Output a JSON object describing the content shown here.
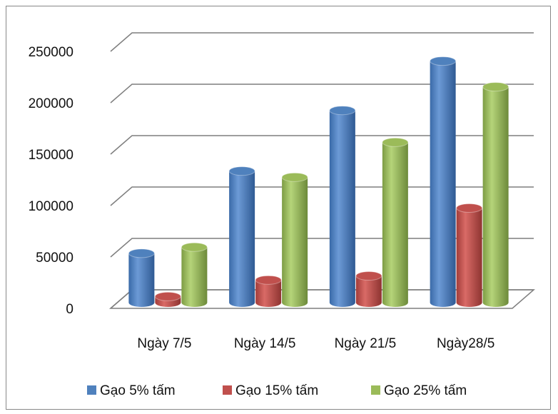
{
  "chart_data": {
    "type": "bar",
    "style": "3d-cylinder",
    "categories": [
      "Ngày 7/5",
      "Ngày 14/5",
      "Ngày 21/5",
      "Ngày28/5"
    ],
    "series": [
      {
        "name": "Gạo 5% tấm",
        "color": "#4f81bd",
        "values": [
          48000,
          128000,
          187000,
          235000
        ]
      },
      {
        "name": "Gạo 15% tấm",
        "color": "#c0504d",
        "values": [
          6000,
          22000,
          26000,
          92000
        ]
      },
      {
        "name": "Gạo 25% tấm",
        "color": "#9bbb59",
        "values": [
          54000,
          122000,
          156000,
          210000
        ]
      }
    ],
    "ylim": [
      0,
      250000
    ],
    "yticks": [
      "0",
      "50000",
      "100000",
      "150000",
      "200000",
      "250000"
    ],
    "grid": true,
    "legend": "bottom"
  }
}
